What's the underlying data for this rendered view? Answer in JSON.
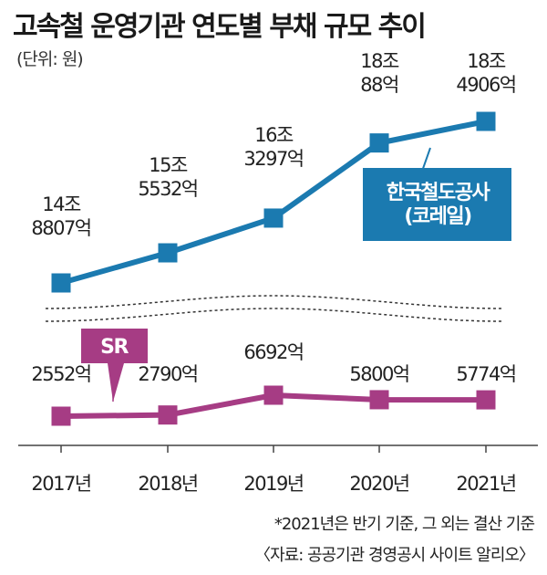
{
  "title": "고속철 운영기관 연도별 부채 규모 추이",
  "unit": "(단위: 원)",
  "note": "*2021년은 반기 기준, 그 외는 결산 기준",
  "source": "〈자료: 공공기관 경영공시 사이트 알리오〉",
  "colors": {
    "korail": "#1b7ab0",
    "sr": "#a63c84",
    "axis": "#444444",
    "dash": "#333333"
  },
  "chart_data": {
    "type": "line",
    "categories": [
      "2017년",
      "2018년",
      "2019년",
      "2020년",
      "2021년"
    ],
    "series": [
      {
        "name": "한국철도공사\n(코레일)",
        "unit": "억원",
        "values": [
          148807,
          155532,
          163297,
          180088,
          184906
        ],
        "labels": [
          "14조\n8807억",
          "15조\n5532억",
          "16조\n3297억",
          "18조\n88억",
          "18조\n4906억"
        ]
      },
      {
        "name": "SR",
        "unit": "억원",
        "values": [
          2552,
          2790,
          6692,
          5800,
          5774
        ],
        "labels": [
          "2552억",
          "2790억",
          "6692억",
          "5800억",
          "5774억"
        ]
      }
    ]
  }
}
